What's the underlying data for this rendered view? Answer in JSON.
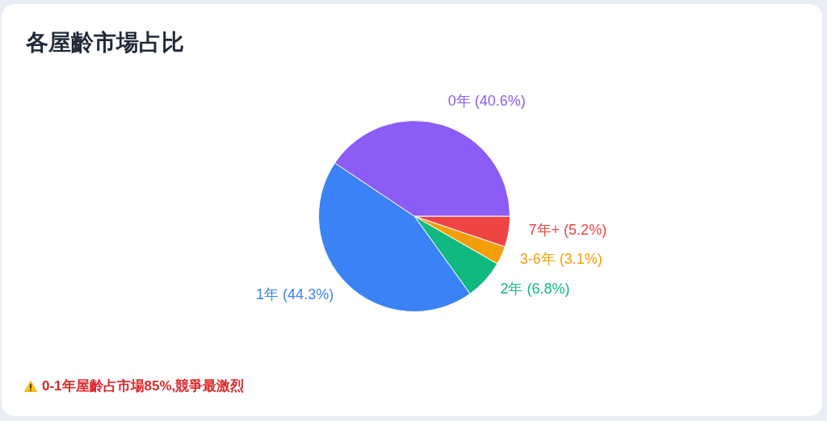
{
  "chart_data": {
    "type": "pie",
    "title": "各屋齡市場占比",
    "categories": [
      "0年",
      "1年",
      "2年",
      "3-6年",
      "7年+"
    ],
    "values": [
      40.6,
      44.3,
      6.8,
      3.1,
      5.2
    ],
    "colors": [
      "#8b5cf6",
      "#3b82f6",
      "#10b981",
      "#f59e0b",
      "#ef4444"
    ],
    "value_labels": [
      "(40.6%)",
      "(44.3%)",
      "(6.8%)",
      "(3.1%)",
      "(5.2%)"
    ],
    "legend": false,
    "annotations": [
      "0-1年屋齡占市場85%,競爭最激烈"
    ]
  }
}
